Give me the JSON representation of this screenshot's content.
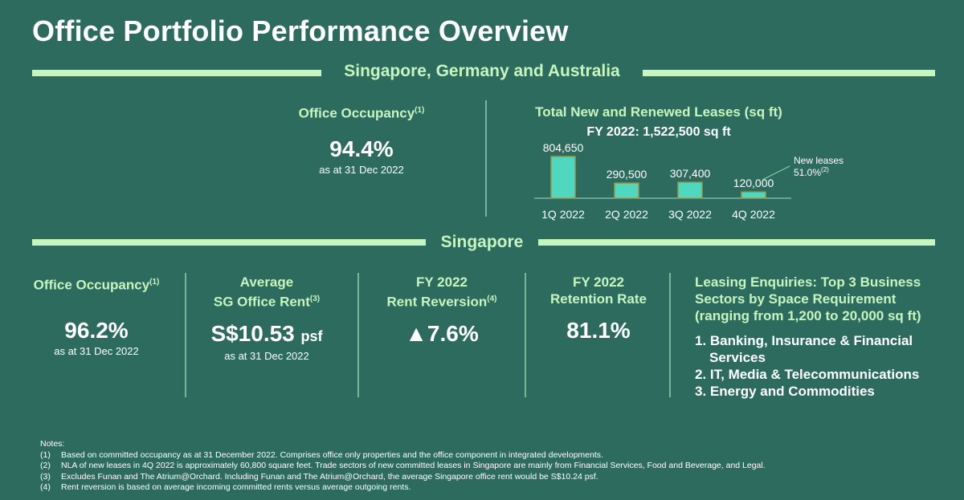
{
  "page_title": "Office Portfolio Performance Overview",
  "section1_label": "Singapore, Germany and Australia",
  "section2_label": "Singapore",
  "top_occupancy": {
    "heading": "Office Occupancy",
    "note_ref": "(1)",
    "value": "94.4%",
    "sub": "as at 31 Dec 2022"
  },
  "chart_data": {
    "type": "bar",
    "title": "Total New and Renewed Leases (sq ft)",
    "subtitle": "FY 2022: 1,522,500 sq ft",
    "categories": [
      "1Q 2022",
      "2Q 2022",
      "3Q 2022",
      "4Q 2022"
    ],
    "values": [
      804650,
      290500,
      307400,
      120000
    ],
    "value_labels": [
      "804,650",
      "290,500",
      "307,400",
      "120,000"
    ],
    "ylim": [
      0,
      804650
    ],
    "annotation": {
      "line1": "New leases:",
      "line2": "51.0%",
      "ref": "(2)"
    },
    "bar_color": "#4fd8c0"
  },
  "sg": {
    "occupancy": {
      "heading": "Office Occupancy",
      "ref": "(1)",
      "value": "96.2%",
      "sub": "as at 31 Dec 2022"
    },
    "rent": {
      "heading1": "Average",
      "heading2": "SG Office Rent",
      "ref": "(3)",
      "value": "S$10.53",
      "unit": "psf",
      "sub": "as at 31 Dec 2022"
    },
    "reversion": {
      "heading1": "FY 2022",
      "heading2": "Rent Reversion",
      "ref": "(4)",
      "value": "▲7.6%"
    },
    "retention": {
      "heading1": "FY 2022",
      "heading2": "Retention Rate",
      "value": "81.1%"
    },
    "enquiries": {
      "heading1": "Leasing Enquiries: Top 3 Business",
      "heading2": "Sectors by Space Requirement",
      "heading3": "(ranging from 1,200 to 20,000 sq ft)",
      "items": [
        "1. Banking, Insurance & Financial",
        "Services",
        "2. IT, Media & Telecommunications",
        "3. Energy and Commodities"
      ]
    }
  },
  "notes": {
    "heading": "Notes:",
    "items": [
      {
        "num": "(1)",
        "text": "Based on committed occupancy as at 31 December 2022. Comprises office only properties and the office component in integrated developments."
      },
      {
        "num": "(2)",
        "text": "NLA of new leases in 4Q 2022 is approximately 60,800 square feet. Trade sectors of new committed leases in Singapore are mainly from Financial Services, Food and Beverage, and Legal."
      },
      {
        "num": "(3)",
        "text": "Excludes Funan and The Atrium@Orchard. Including Funan and The Atrium@Orchard, the average Singapore office rent would be S$10.24 psf."
      },
      {
        "num": "(4)",
        "text": "Rent reversion is based on average incoming committed rents versus average outgoing rents."
      }
    ]
  }
}
